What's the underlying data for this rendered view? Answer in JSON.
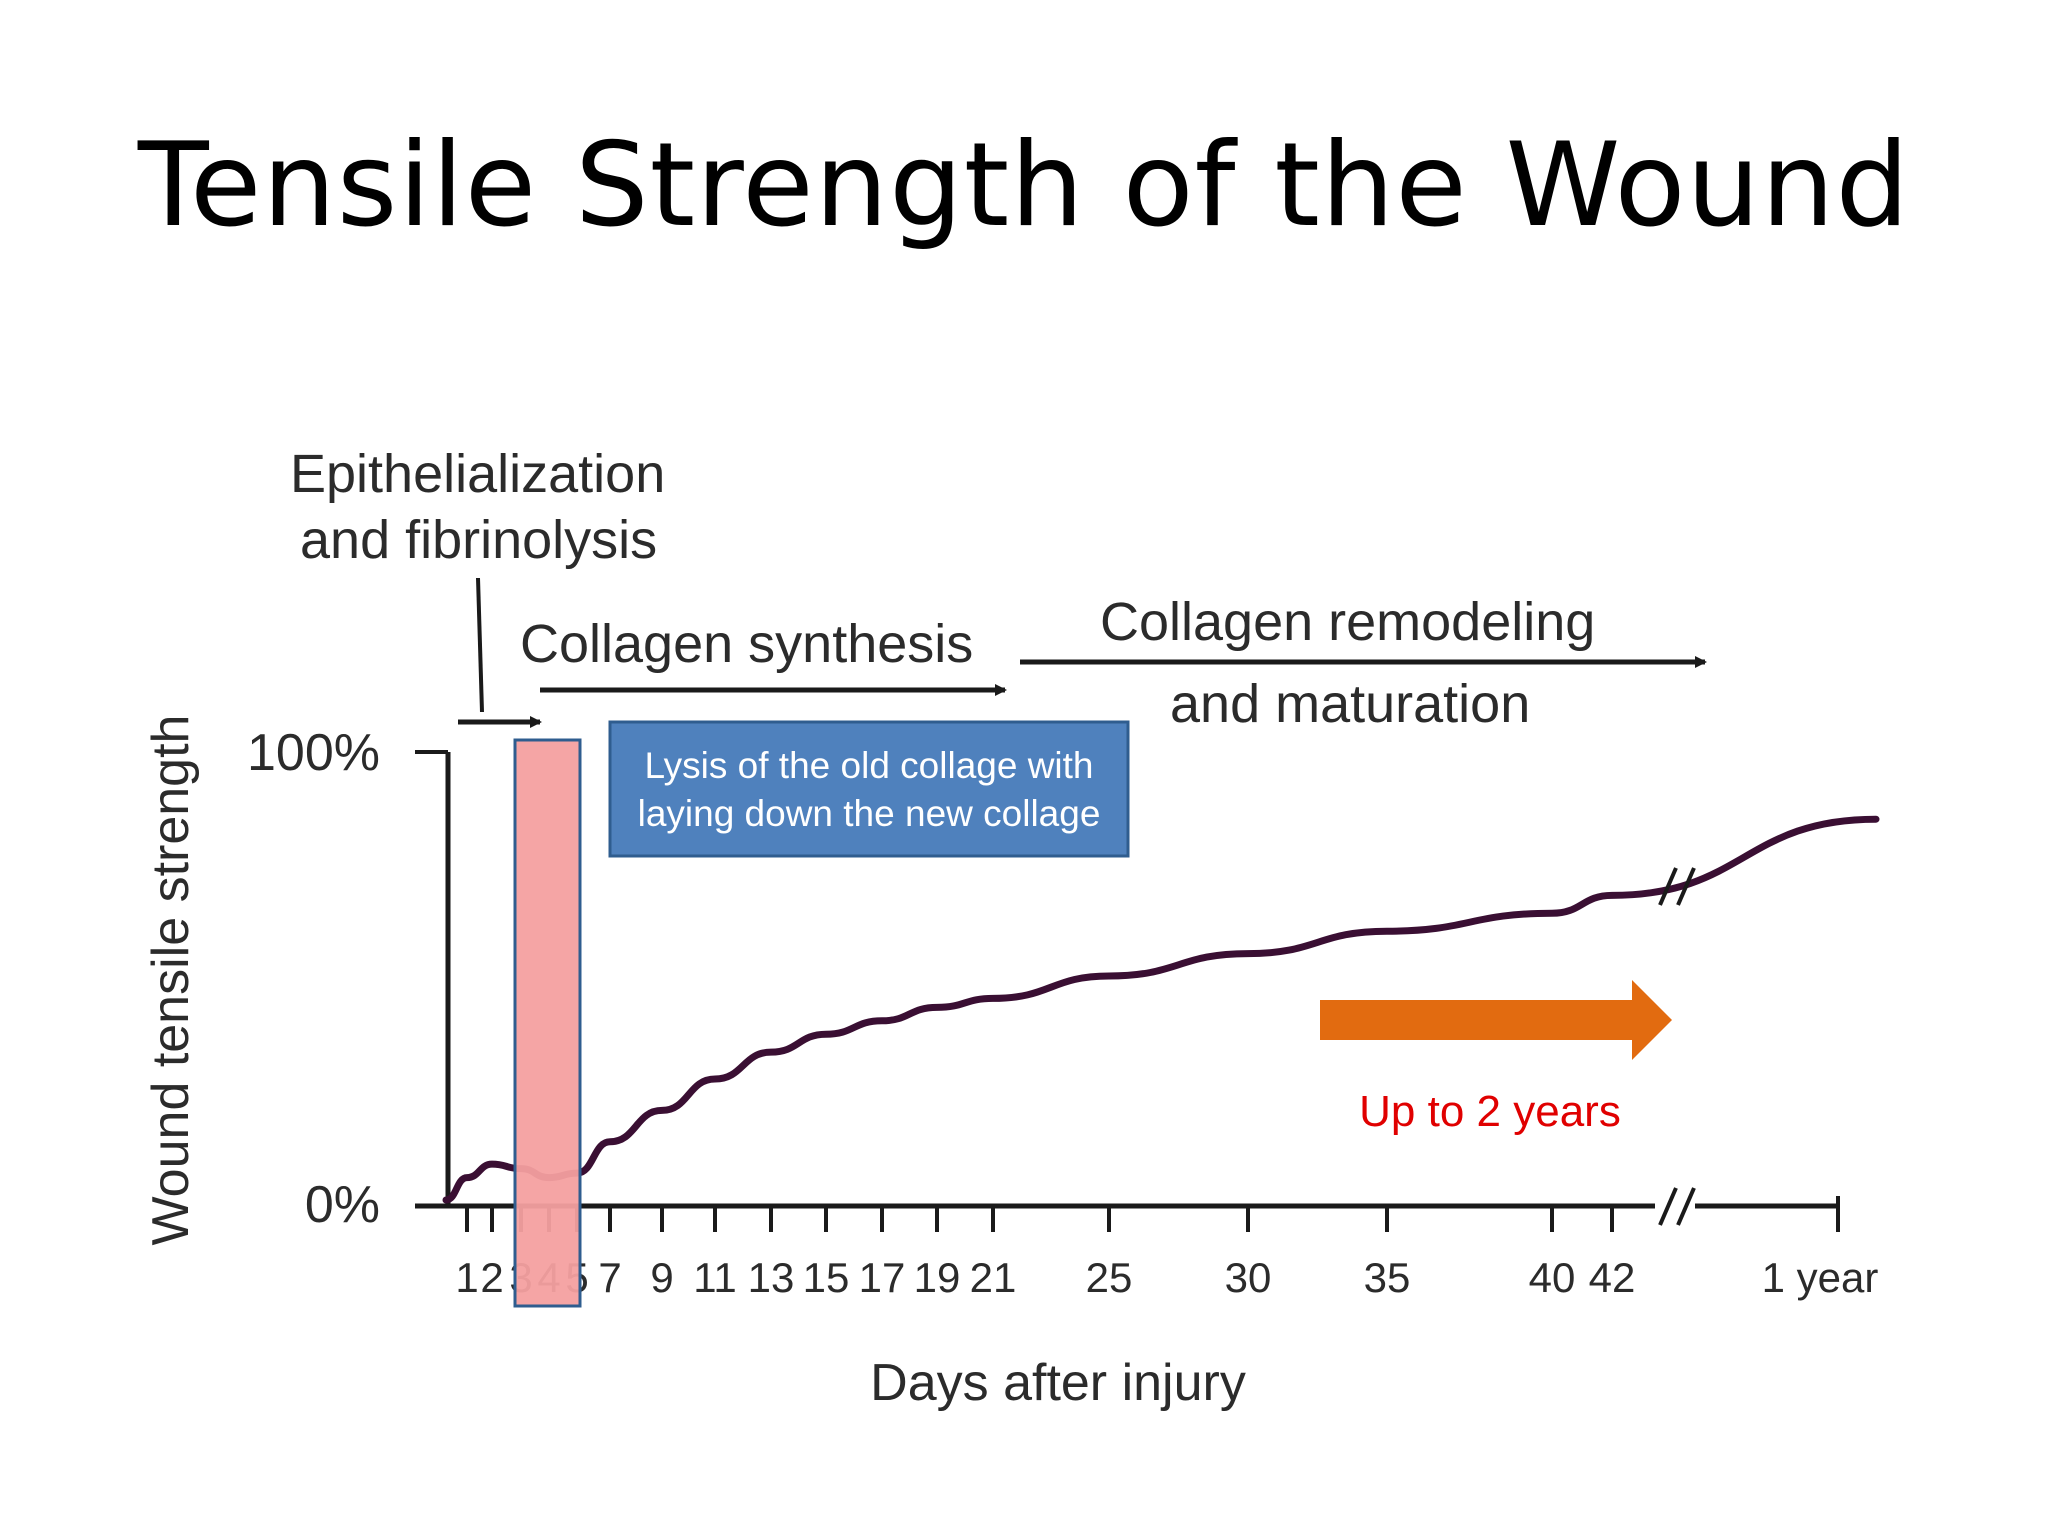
{
  "slide": {
    "title": "Tensile Strength of the Wound"
  },
  "chart_data": {
    "type": "line",
    "xlabel": "Days after injury",
    "ylabel": "Wound tensile strength",
    "y_ticks": [
      "100%",
      "0%"
    ],
    "ylim": [
      0,
      100
    ],
    "x_tick_labels": [
      "1",
      "2",
      "3",
      "4",
      "5",
      "7",
      "9",
      "11",
      "13",
      "15",
      "17",
      "19",
      "21",
      "25",
      "30",
      "35",
      "40",
      "42",
      "1 year"
    ],
    "x_axis_break": "after day 42",
    "series": [
      {
        "color": "#3a0f33",
        "x": [
          "0",
          "1",
          "2",
          "3",
          "4",
          "5",
          "7",
          "9",
          "11",
          "13",
          "15",
          "17",
          "19",
          "21",
          "25",
          "30",
          "35",
          "40",
          "42",
          "1 year"
        ],
        "values": [
          0,
          5,
          8,
          7,
          5,
          6,
          13,
          20,
          27,
          33,
          37,
          40,
          43,
          45,
          50,
          55,
          60,
          64,
          68,
          85
        ]
      }
    ],
    "phases": [
      {
        "label_lines": [
          "Epithelialization",
          "and fibrinolysis"
        ]
      },
      {
        "label_lines": [
          "Collagen synthesis"
        ]
      },
      {
        "label_lines": [
          "Collagen remodeling",
          "and maturation"
        ]
      }
    ],
    "highlight_days": [
      "3",
      "4"
    ],
    "highlight_color": "#f4a0a0",
    "callout": {
      "lines": [
        "Lysis of the old collage with",
        "laying down the new collage"
      ],
      "fill": "#4f81bd"
    },
    "note": {
      "text": "Up to 2 years",
      "color": "#e00000",
      "arrow_color": "#e26b10"
    },
    "grid": false,
    "legend": "none"
  }
}
